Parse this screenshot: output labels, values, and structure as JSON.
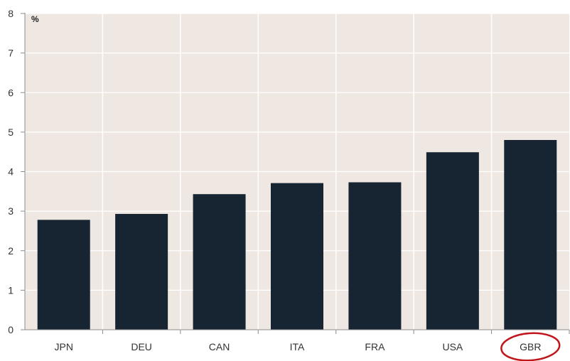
{
  "chart_data": {
    "type": "bar",
    "categories": [
      "JPN",
      "DEU",
      "CAN",
      "ITA",
      "FRA",
      "USA",
      "GBR"
    ],
    "values": [
      2.78,
      2.93,
      3.43,
      3.71,
      3.73,
      4.49,
      4.8
    ],
    "ylim": [
      0,
      8
    ],
    "yticks": [
      0,
      1,
      2,
      3,
      4,
      5,
      6,
      7,
      8
    ],
    "unit": "%",
    "grid": true,
    "highlighted_category": "GBR",
    "colors": {
      "bar": "#172533",
      "plot_background": "#efe8e2",
      "grid": "#ffffff",
      "axis": "#8c8c8c",
      "highlight_circle": "#c0161c"
    }
  }
}
